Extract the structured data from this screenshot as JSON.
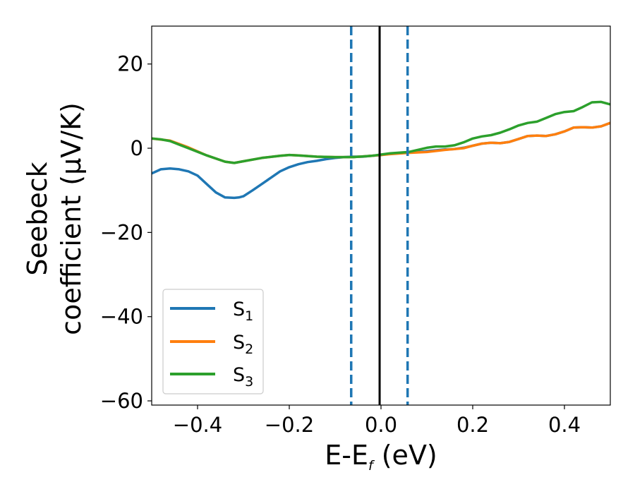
{
  "chart_data": {
    "type": "line",
    "title": "",
    "xlabel": {
      "base": "E-E",
      "sub": "f",
      "unit": " (eV)"
    },
    "ylabel": {
      "line1": "Seebeck",
      "line2": "coefficient",
      "unit": "(μV/K)"
    },
    "xlim": [
      -0.5,
      0.5
    ],
    "ylim": [
      -61,
      29
    ],
    "xticks": [
      -0.4,
      -0.2,
      0.0,
      0.2,
      0.4
    ],
    "xtick_labels": [
      "−0.4",
      "−0.2",
      "0.0",
      "0.2",
      "0.4"
    ],
    "yticks": [
      -60,
      -40,
      -20,
      0,
      20
    ],
    "ytick_labels": [
      "−60",
      "−40",
      "−20",
      "0",
      "20"
    ],
    "grid": false,
    "legend_position": "lower-left",
    "series": [
      {
        "name": "S1",
        "label_base": "S",
        "label_sub": "1",
        "color": "#1f77b4",
        "x": [
          -0.5,
          -0.48,
          -0.46,
          -0.44,
          -0.42,
          -0.4,
          -0.38,
          -0.36,
          -0.34,
          -0.32,
          -0.31,
          -0.3,
          -0.28,
          -0.26,
          -0.24,
          -0.22,
          -0.2,
          -0.18,
          -0.16,
          -0.14,
          -0.12,
          -0.1,
          -0.08,
          -0.06,
          -0.04,
          -0.02,
          0.0,
          0.02,
          0.04,
          0.06,
          0.08,
          0.1,
          0.12,
          0.14,
          0.16,
          0.18,
          0.2,
          0.22,
          0.24,
          0.26,
          0.28,
          0.3,
          0.32,
          0.34,
          0.36,
          0.38,
          0.4,
          0.42,
          0.44,
          0.46,
          0.48,
          0.5
        ],
        "y": [
          -6,
          -5.0,
          -4.8,
          -5.0,
          -5.5,
          -6.5,
          -8.5,
          -10.5,
          -11.7,
          -11.8,
          -11.7,
          -11.4,
          -10.0,
          -8.5,
          -7.0,
          -5.5,
          -4.5,
          -3.8,
          -3.3,
          -3.0,
          -2.6,
          -2.3,
          -2.1,
          -2.0,
          -2.0,
          -1.8,
          -1.6,
          -1.3,
          -1.1,
          -1.0,
          -0.9,
          -0.7,
          -0.5,
          -0.3,
          -0.2,
          0.1,
          0.6,
          1.1,
          1.3,
          1.2,
          1.5,
          2.2,
          2.9,
          3.0,
          2.9,
          3.3,
          4.0,
          4.9,
          5.0,
          4.9,
          5.2,
          6.0
        ]
      },
      {
        "name": "S2",
        "label_base": "S",
        "label_sub": "2",
        "color": "#ff7f0e",
        "x": [
          -0.5,
          -0.46,
          -0.42,
          -0.38,
          -0.34,
          -0.32,
          -0.3,
          -0.26,
          -0.22,
          -0.2,
          -0.18,
          -0.14,
          -0.1,
          -0.06,
          -0.02,
          0.0,
          0.02,
          0.06,
          0.1,
          0.14,
          0.16,
          0.18,
          0.2,
          0.22,
          0.24,
          0.26,
          0.28,
          0.3,
          0.32,
          0.34,
          0.36,
          0.38,
          0.4,
          0.42,
          0.44,
          0.46,
          0.48,
          0.5
        ],
        "y": [
          2.3,
          1.8,
          0.2,
          -1.7,
          -3.2,
          -3.5,
          -3.1,
          -2.3,
          -1.8,
          -1.6,
          -1.7,
          -2.0,
          -2.1,
          -2.1,
          -1.8,
          -1.6,
          -1.4,
          -1.1,
          -0.9,
          -0.4,
          -0.2,
          0.0,
          0.6,
          1.1,
          1.3,
          1.2,
          1.5,
          2.2,
          2.9,
          3.0,
          2.9,
          3.3,
          4.0,
          4.9,
          5.0,
          4.9,
          5.2,
          6.0
        ]
      },
      {
        "name": "S3",
        "label_base": "S",
        "label_sub": "3",
        "color": "#2ca02c",
        "x": [
          -0.5,
          -0.48,
          -0.46,
          -0.42,
          -0.38,
          -0.34,
          -0.32,
          -0.3,
          -0.26,
          -0.22,
          -0.2,
          -0.18,
          -0.14,
          -0.1,
          -0.06,
          -0.02,
          0.0,
          0.02,
          0.06,
          0.08,
          0.1,
          0.12,
          0.14,
          0.16,
          0.18,
          0.2,
          0.22,
          0.24,
          0.26,
          0.28,
          0.3,
          0.32,
          0.34,
          0.36,
          0.38,
          0.4,
          0.42,
          0.44,
          0.46,
          0.48,
          0.5
        ],
        "y": [
          2.3,
          2.1,
          1.7,
          0.0,
          -1.7,
          -3.2,
          -3.5,
          -3.1,
          -2.3,
          -1.8,
          -1.6,
          -1.7,
          -2.0,
          -2.1,
          -2.1,
          -1.8,
          -1.5,
          -1.2,
          -0.9,
          -0.4,
          0.1,
          0.4,
          0.4,
          0.7,
          1.4,
          2.3,
          2.8,
          3.1,
          3.7,
          4.5,
          5.4,
          6.0,
          6.3,
          7.2,
          8.1,
          8.6,
          8.8,
          9.8,
          10.9,
          11.0,
          10.4
        ]
      }
    ],
    "vertical_lines": [
      {
        "name": "fermi-level-line",
        "x": -0.003,
        "color": "#000000",
        "style": "solid"
      },
      {
        "name": "left-dashed-line",
        "x": -0.065,
        "color": "#1f77b4",
        "style": "dashed"
      },
      {
        "name": "right-dashed-line",
        "x": 0.058,
        "color": "#1f77b4",
        "style": "dashed"
      }
    ]
  }
}
